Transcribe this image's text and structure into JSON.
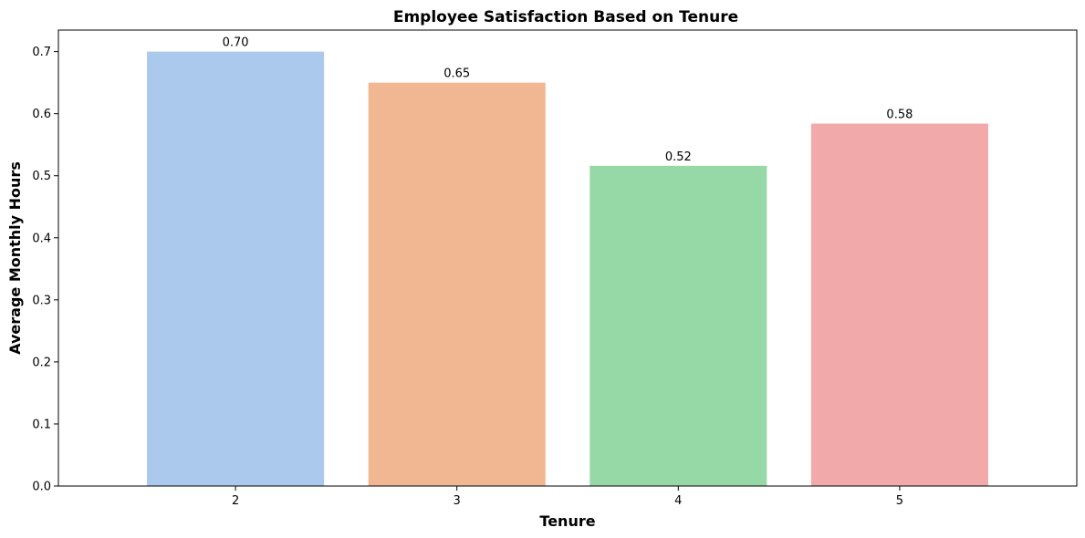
{
  "chart_data": {
    "type": "bar",
    "title": "Employee Satisfaction Based on Tenure",
    "xlabel": "Tenure",
    "ylabel": "Average Monthly Hours",
    "categories": [
      "2",
      "3",
      "4",
      "5"
    ],
    "values": [
      0.7,
      0.65,
      0.516,
      0.584
    ],
    "value_labels": [
      "0.70",
      "0.65",
      "0.52",
      "0.58"
    ],
    "colors": [
      "#abc9ec",
      "#f0b792",
      "#97d8a7",
      "#f1aaa9"
    ],
    "ylim": [
      0,
      0.7347
    ],
    "yticks": [
      0.0,
      0.1,
      0.2,
      0.3,
      0.4,
      0.5,
      0.6,
      0.7
    ],
    "ytick_labels": [
      "0.0",
      "0.1",
      "0.2",
      "0.3",
      "0.4",
      "0.5",
      "0.6",
      "0.7"
    ],
    "grid": false,
    "legend": "none"
  }
}
